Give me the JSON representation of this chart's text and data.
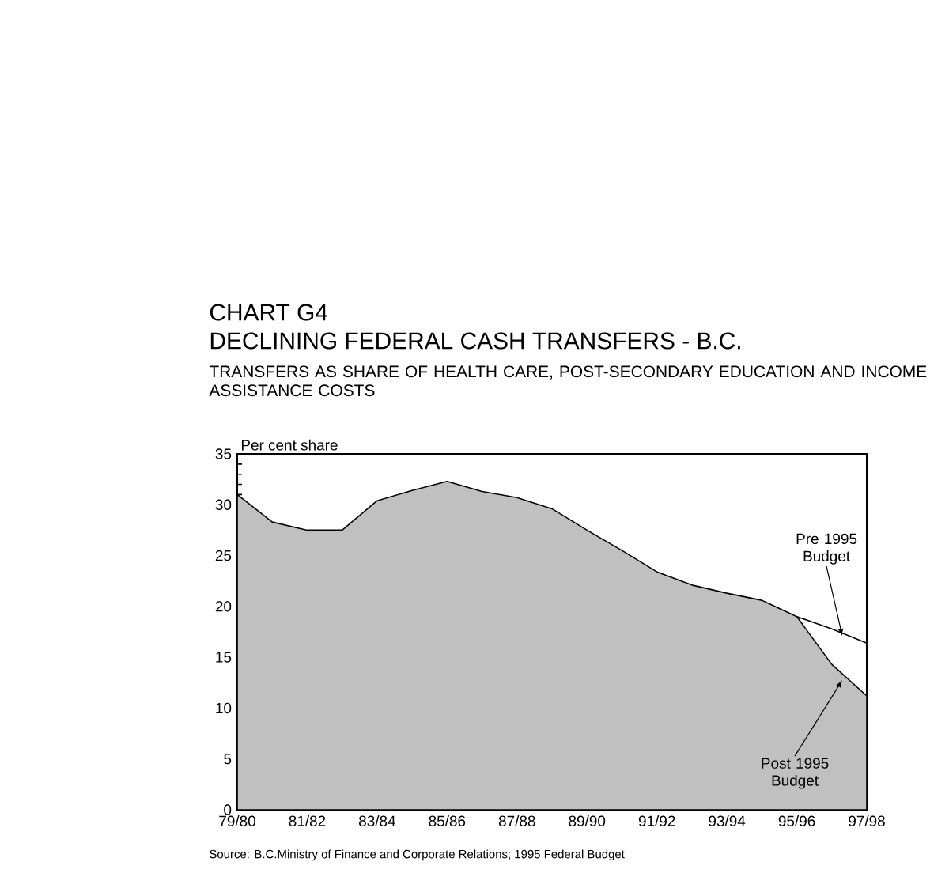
{
  "chart_data": {
    "type": "area",
    "title": "CHART G4",
    "subtitle": "DECLINING FEDERAL CASH TRANSFERS - B.C.",
    "ylabel": "Per cent share",
    "annotations": [
      "TRANSFERS AS SHARE OF HEALTH CARE, POST-SECONDARY EDUCATION AND INCOME ASSISTANCE COSTS",
      "Source:  B.C.Ministry of Finance and Corporate Relations; 1995 Federal Budget"
    ],
    "categories": [
      "79/80",
      null,
      "81/82",
      null,
      "83/84",
      null,
      "85/86",
      null,
      "87/88",
      null,
      "89/90",
      null,
      "91/92",
      null,
      "93/94",
      null,
      "95/96",
      null,
      "97/98"
    ],
    "series": [
      {
        "name": "Post 1995 Budget",
        "color": "#c0c0c0",
        "values": [
          31.0,
          28.3,
          27.5,
          27.5,
          30.4,
          31.4,
          32.3,
          31.3,
          30.7,
          29.6,
          27.5,
          25.5,
          23.4,
          22.1,
          21.3,
          20.6,
          19.0,
          14.3,
          11.2
        ]
      },
      {
        "name": "Pre 1995 Budget",
        "type": "line",
        "color": "#000000",
        "values": [
          null,
          null,
          null,
          null,
          null,
          null,
          null,
          null,
          null,
          null,
          null,
          null,
          null,
          null,
          null,
          null,
          19.0,
          17.8,
          16.4
        ]
      }
    ],
    "ylim": [
      0,
      35
    ],
    "yticks": [
      0,
      5,
      10,
      15,
      20,
      25,
      30,
      35
    ],
    "legend": false
  }
}
